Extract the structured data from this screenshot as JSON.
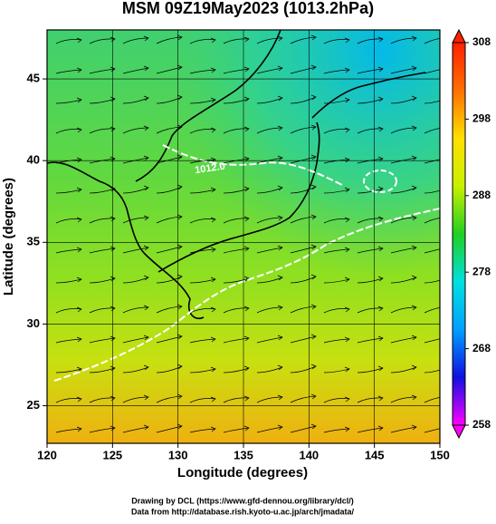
{
  "map": {
    "title": "MSM 09Z19May2023 (1013.2hPa)",
    "xlabel": "Longitude (degrees)",
    "ylabel": "Latitude  (degrees)",
    "xlim": [
      120,
      150
    ],
    "ylim": [
      22.7,
      48
    ],
    "xticks": [
      120,
      125,
      130,
      135,
      140,
      145,
      150
    ],
    "yticks": [
      25,
      30,
      35,
      40,
      45
    ],
    "colorbar": {
      "lim": [
        258,
        308
      ],
      "ticks": [
        258,
        268,
        278,
        288,
        298,
        308
      ],
      "colors": [
        "#ff00ff",
        "#1010e0",
        "#00a0ff",
        "#00e0e0",
        "#20d020",
        "#c8f000",
        "#ffe000",
        "#ff7000",
        "#ff2000"
      ]
    },
    "contour_label": "1012.0",
    "credits": [
      "Drawing by DCL (https://www.gfd-dennou.org/library/dcl/)",
      "Data from http://database.rish.kyoto-u.ac.jp/arch/jmadata/"
    ]
  }
}
